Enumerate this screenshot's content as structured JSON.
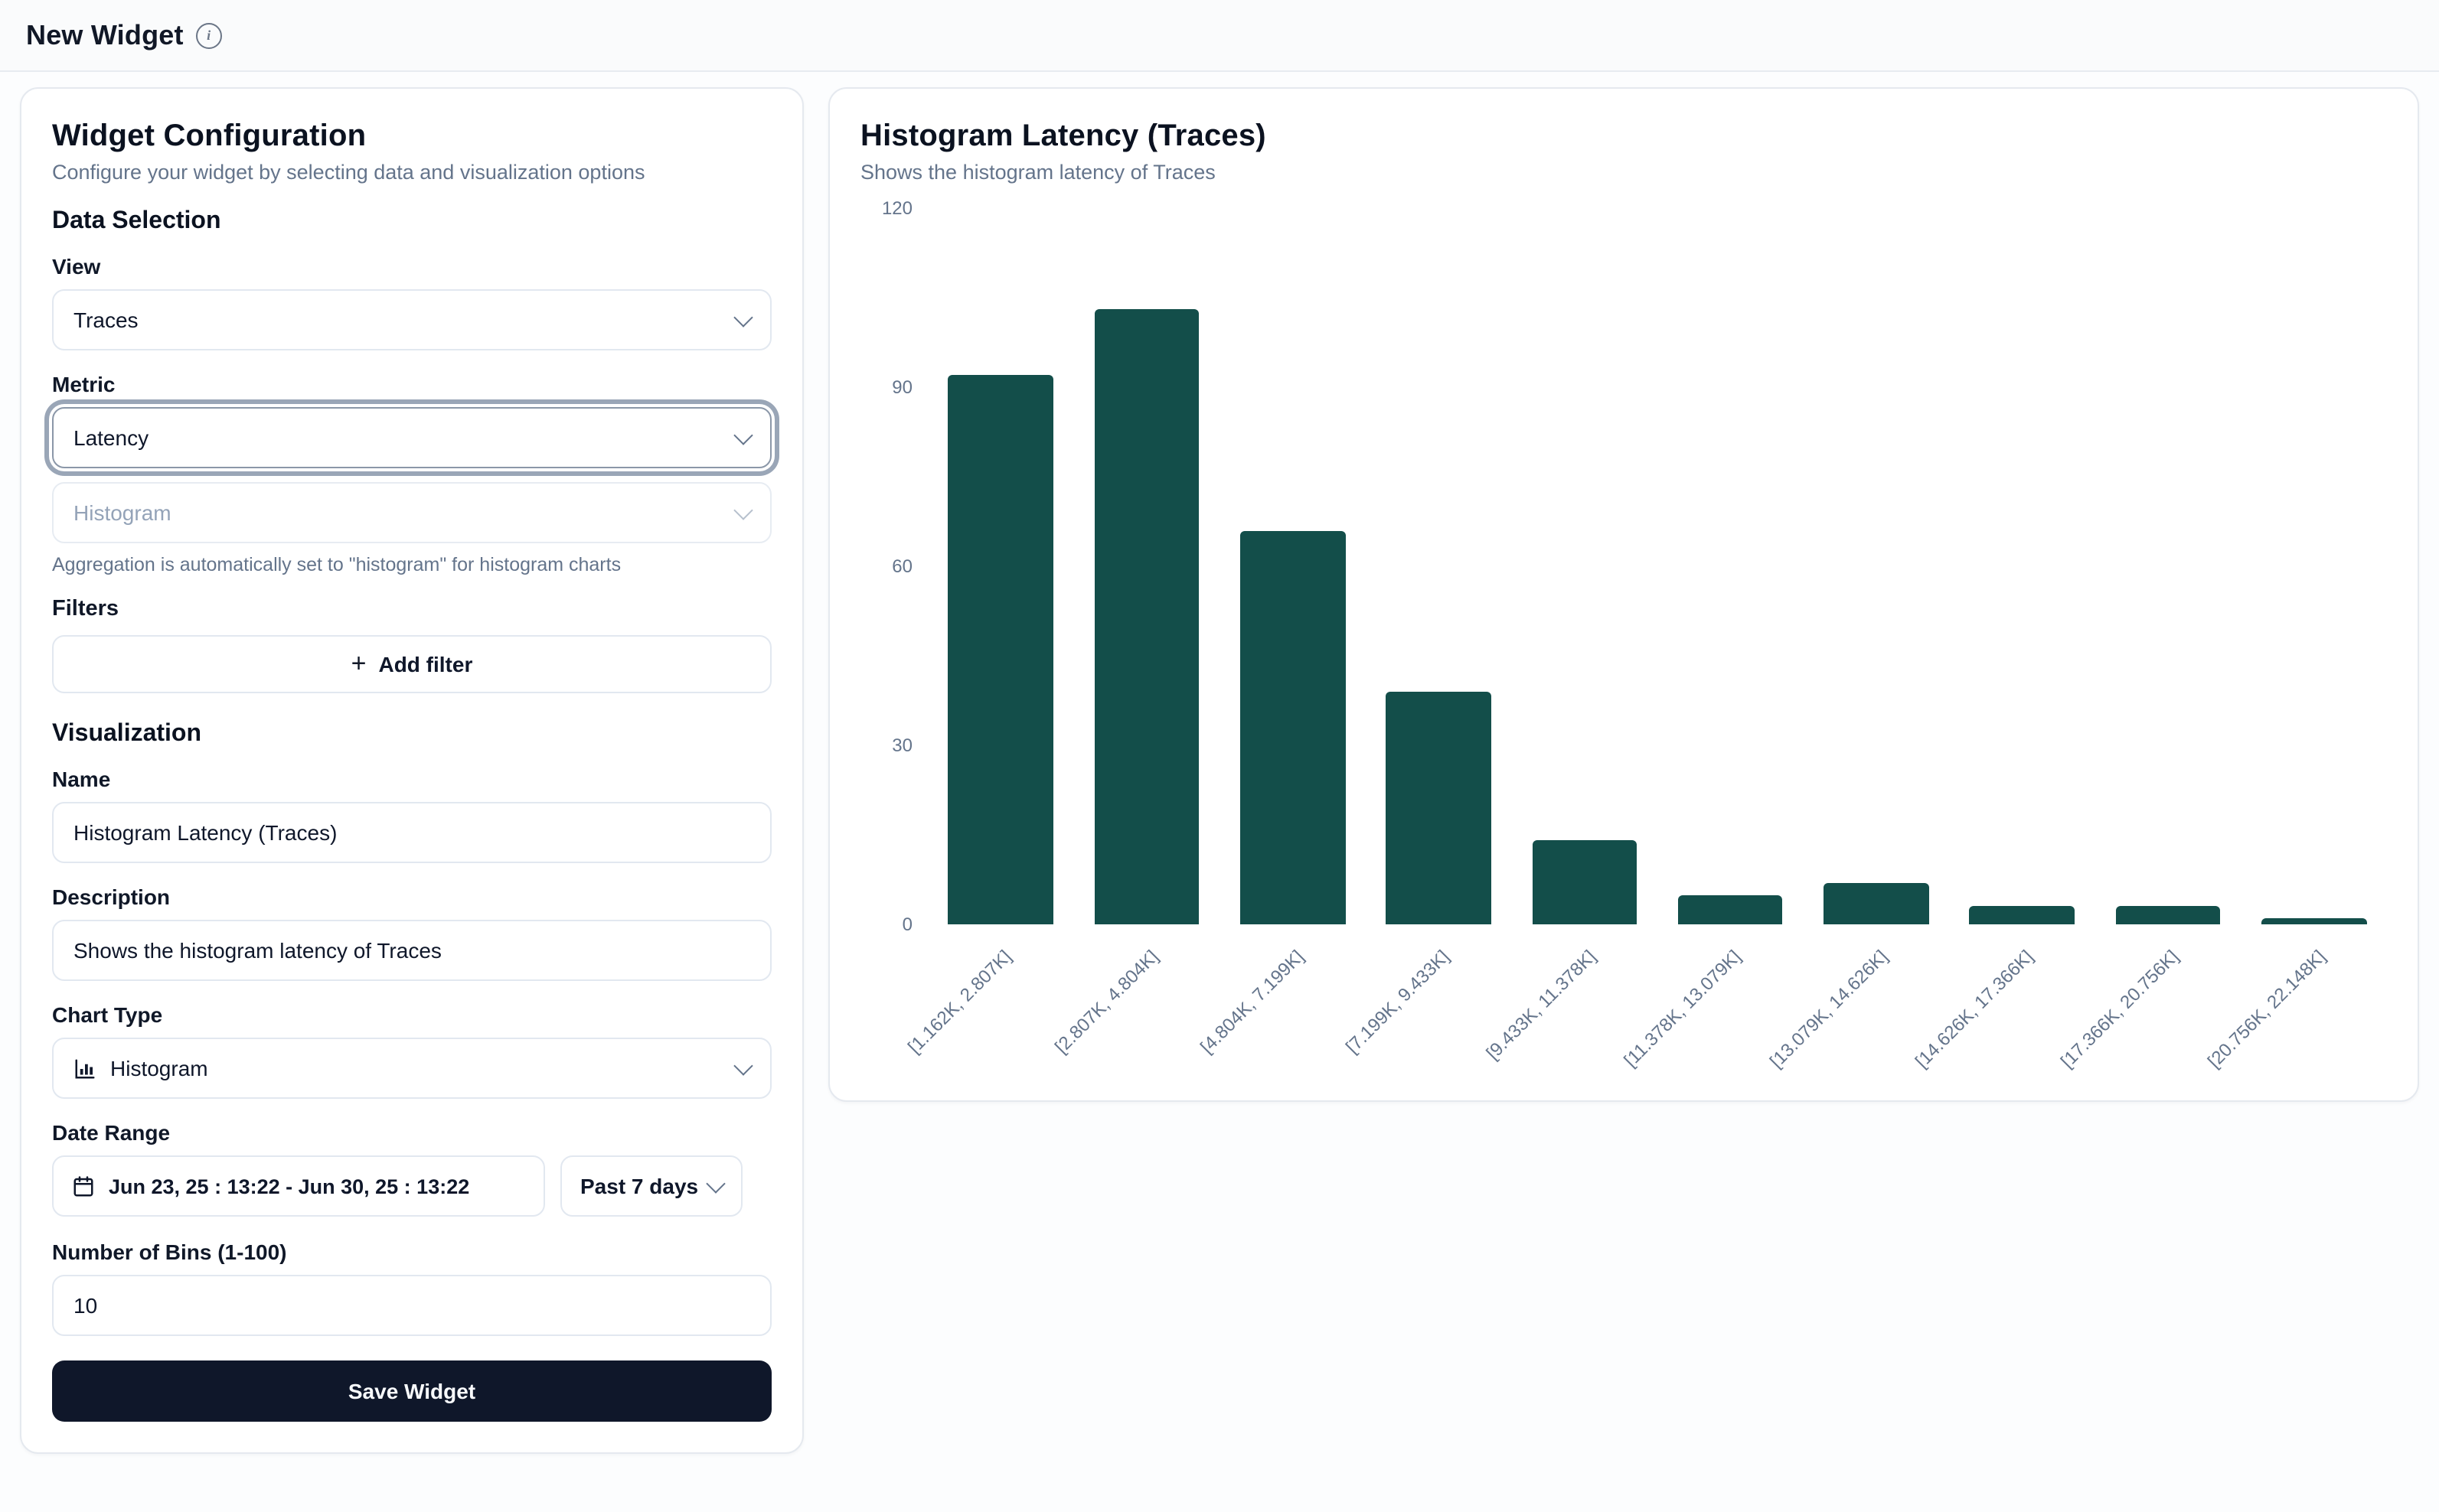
{
  "header": {
    "title": "New Widget"
  },
  "config_panel": {
    "title": "Widget Configuration",
    "subtitle": "Configure your widget by selecting data and visualization options",
    "data_selection": {
      "heading": "Data Selection",
      "view_label": "View",
      "view_value": "Traces",
      "metric_label": "Metric",
      "metric_value": "Latency",
      "aggregation_value": "Histogram",
      "aggregation_help": "Aggregation is automatically set to \"histogram\" for histogram charts",
      "filters_label": "Filters",
      "add_filter_label": "Add filter"
    },
    "visualization": {
      "heading": "Visualization",
      "name_label": "Name",
      "name_value": "Histogram Latency (Traces)",
      "description_label": "Description",
      "description_value": "Shows the histogram latency of Traces",
      "chart_type_label": "Chart Type",
      "chart_type_value": "Histogram",
      "date_range_label": "Date Range",
      "date_range_value": "Jun 23, 25 : 13:22 - Jun 30, 25 : 13:22",
      "date_preset_value": "Past 7 days",
      "bins_label": "Number of Bins (1-100)",
      "bins_value": "10",
      "save_label": "Save Widget"
    }
  },
  "preview_panel": {
    "title": "Histogram Latency (Traces)",
    "subtitle": "Shows the histogram latency of Traces"
  },
  "chart_data": {
    "type": "bar",
    "title": "Histogram Latency (Traces)",
    "subtitle": "Shows the histogram latency of Traces",
    "categories": [
      "[1.162K, 2.807K]",
      "[2.807K, 4.804K]",
      "[4.804K, 7.199K]",
      "[7.199K, 9.433K]",
      "[9.433K, 11.378K]",
      "[11.378K, 13.079K]",
      "[13.079K, 14.626K]",
      "[14.626K, 17.366K]",
      "[17.366K, 20.756K]",
      "[20.756K, 22.148K]"
    ],
    "values": [
      92,
      103,
      66,
      39,
      14,
      5,
      7,
      3,
      3,
      1
    ],
    "xlabel": "",
    "ylabel": "",
    "ylim": [
      0,
      120
    ],
    "yticks": [
      0,
      30,
      60,
      90,
      120
    ],
    "grid": false,
    "legend": false,
    "bar_color": "#134e4a",
    "x_tick_rotation": -45
  },
  "colors": {
    "bar_fill": "#134e4a",
    "primary_button": "#0f172a",
    "muted_text": "#64748b",
    "card_border": "#e5e9ef"
  }
}
